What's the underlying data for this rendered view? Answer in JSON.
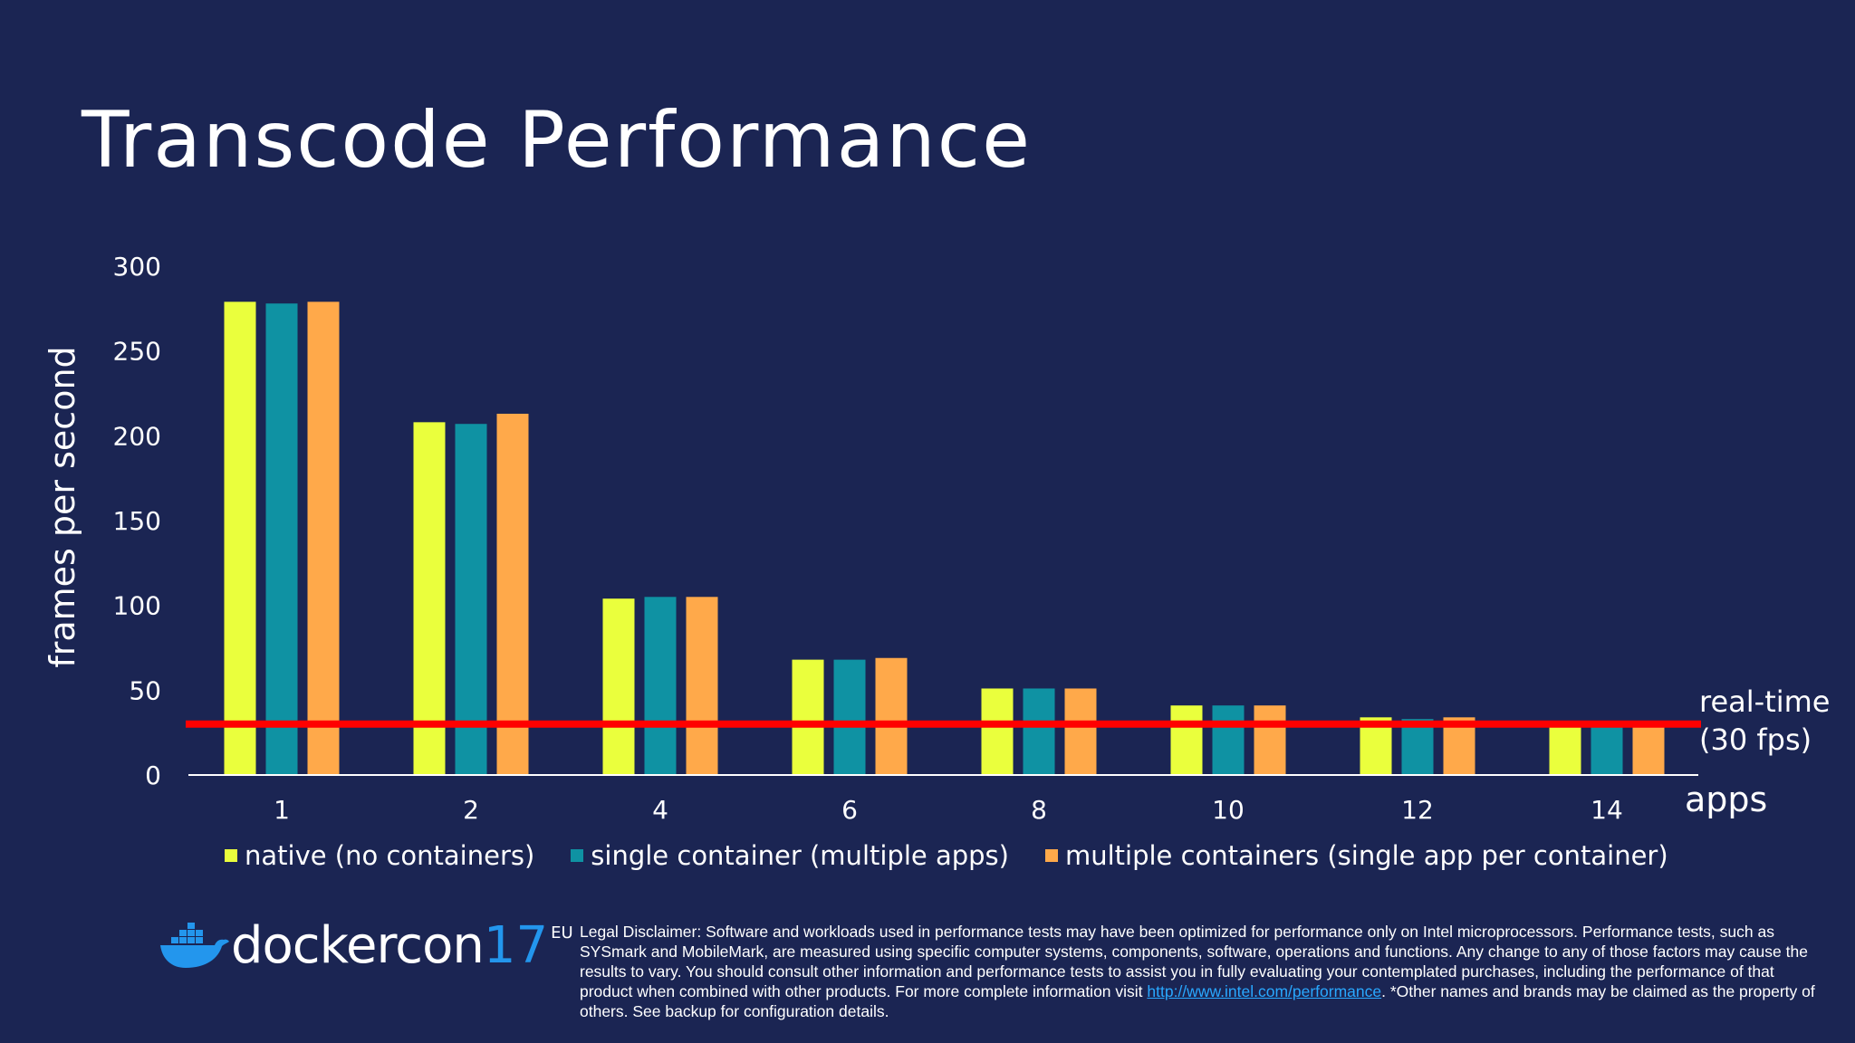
{
  "slide": {
    "title": "Transcode Performance"
  },
  "colors": {
    "background": "#1b2553",
    "native": "#eaff3d",
    "single": "#0f92a3",
    "multiple": "#ffa94a",
    "threshold": "#ff0000",
    "axis": "#ffffff",
    "docker_blue": "#2396ed",
    "link": "#29a8ff"
  },
  "chart_data": {
    "type": "bar",
    "title": "Transcode Performance",
    "xlabel": "apps",
    "ylabel": "frames per second",
    "ylim": [
      0,
      300
    ],
    "yticks": [
      0,
      50,
      100,
      150,
      200,
      250,
      300
    ],
    "grid": false,
    "categories": [
      "1",
      "2",
      "4",
      "6",
      "8",
      "10",
      "12",
      "14"
    ],
    "series": [
      {
        "name": "native (no containers)",
        "color_key": "native",
        "values": [
          279,
          208,
          104,
          68,
          51,
          41,
          34,
          29
        ]
      },
      {
        "name": "single container (multiple apps)",
        "color_key": "single",
        "values": [
          278,
          207,
          105,
          68,
          51,
          41,
          33,
          29
        ]
      },
      {
        "name": "multiple containers (single app per container)",
        "color_key": "multiple",
        "values": [
          279,
          213,
          105,
          69,
          51,
          41,
          34,
          29
        ]
      }
    ],
    "threshold": {
      "value": 30,
      "label_line1": "real-time",
      "label_line2": "(30 fps)"
    },
    "legend_position": "bottom"
  },
  "footer": {
    "logo_text": "dockercon",
    "logo_number": "17",
    "logo_region": "EU",
    "disclaimer_part1": "Legal Disclaimer: Software and workloads used in performance tests may have been optimized for performance only on Intel microprocessors. Performance tests, such as SYSmark and MobileMark, are measured using specific computer systems, components, software, operations and functions. Any change to any of those factors may cause the results to vary. You should consult other information and performance tests to assist you in fully evaluating your contemplated purchases, including the performance of that product when combined with other products. For more complete information visit ",
    "disclaimer_link": "http://www.intel.com/performance",
    "disclaimer_part2": ". *Other names and brands may be claimed as the property of others. See backup for configuration details."
  }
}
